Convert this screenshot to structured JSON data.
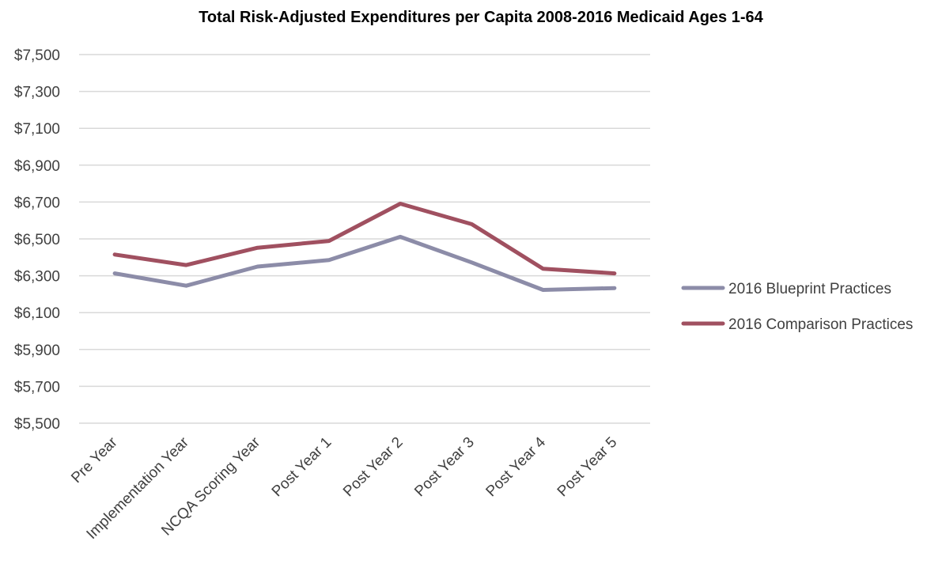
{
  "chart_data": {
    "type": "line",
    "title": "Total Risk-Adjusted Expenditures per Capita 2008-2016 Medicaid Ages 1-64",
    "xlabel": "",
    "ylabel": "",
    "categories": [
      "Pre Year",
      "Implementation Year",
      "NCQA Scoring Year",
      "Post Year 1",
      "Post Year 2",
      "Post Year 3",
      "Post Year 4",
      "Post Year 5"
    ],
    "y_ticks": [
      "$7,500",
      "$7,300",
      "$7,100",
      "$6,900",
      "$6,700",
      "$6,500",
      "$6,300",
      "$6,100",
      "$5,900",
      "$5,700",
      "$5,500"
    ],
    "ylim": [
      5500,
      7500
    ],
    "ytick_step": 200,
    "grid": true,
    "legend_position": "right",
    "series": [
      {
        "name": "2016 Blueprint Practices",
        "color": "#8c8ca8",
        "values": [
          6313,
          6246,
          6350,
          6385,
          6511,
          6372,
          6223,
          6233
        ]
      },
      {
        "name": "2016 Comparison Practices",
        "color": "#a05060",
        "values": [
          6415,
          6358,
          6452,
          6489,
          6691,
          6580,
          6338,
          6313
        ]
      }
    ]
  }
}
